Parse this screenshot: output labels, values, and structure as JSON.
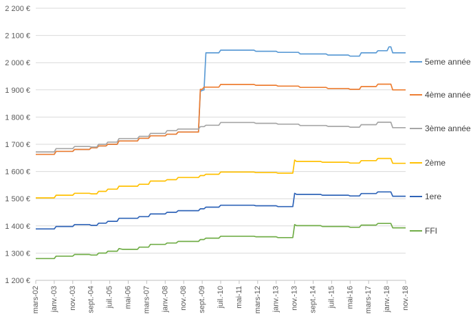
{
  "chart_data": {
    "type": "line",
    "title": "",
    "xlabel": "",
    "ylabel": "",
    "ylim": [
      1200,
      2200
    ],
    "y_tick_step": 100,
    "y_tick_labels": [
      "1 200 €",
      "1 300 €",
      "1 400 €",
      "1 500 €",
      "1 600 €",
      "1 700 €",
      "1 800 €",
      "1 900 €",
      "2 000 €",
      "2 100 €",
      "2 200 €"
    ],
    "x_tick_labels": [
      "mars-02",
      "janv.-03",
      "nov.-03",
      "sept.-04",
      "juil.-05",
      "mai-06",
      "mars-07",
      "janv.-08",
      "nov.-08",
      "sept.-09",
      "juil.-10",
      "mai-11",
      "mars-12",
      "janv.-13",
      "nov.-13",
      "sept.-14",
      "juil.-15",
      "mai-16",
      "mars-17",
      "janv.-18",
      "nov.-18"
    ],
    "grid": true,
    "legend_position": "right",
    "series": [
      {
        "name": "5eme année",
        "color": "#5B9BD5",
        "points": [
          [
            "mars-02",
            1663
          ],
          [
            "janv.-03",
            1663
          ],
          [
            "févr.-03",
            1674
          ],
          [
            "nov.-03",
            1674
          ],
          [
            "déc.-03",
            1681
          ],
          [
            "août-04",
            1681
          ],
          [
            "sept.-04",
            1687
          ],
          [
            "déc.-04",
            1687
          ],
          [
            "janv.-05",
            1694
          ],
          [
            "mai-05",
            1694
          ],
          [
            "juin-05",
            1700
          ],
          [
            "nov.-05",
            1700
          ],
          [
            "déc.-05",
            1712
          ],
          [
            "oct.-06",
            1712
          ],
          [
            "nov.-06",
            1722
          ],
          [
            "avr.-07",
            1722
          ],
          [
            "mai-07",
            1731
          ],
          [
            "janv.-08",
            1731
          ],
          [
            "févr.-08",
            1737
          ],
          [
            "juil.-08",
            1737
          ],
          [
            "août-08",
            1745
          ],
          [
            "juil.-09",
            1745
          ],
          [
            "août-09",
            1895
          ],
          [
            "sept.-09",
            1898
          ],
          [
            "oct.-09",
            1900
          ],
          [
            "nov.-09",
            2036
          ],
          [
            "juin-10",
            2036
          ],
          [
            "juil.-10",
            2046
          ],
          [
            "janv.-12",
            2046
          ],
          [
            "févr.-12",
            2042
          ],
          [
            "janv.-13",
            2042
          ],
          [
            "févr.-13",
            2038
          ],
          [
            "janv.-14",
            2038
          ],
          [
            "févr.-14",
            2032
          ],
          [
            "avr.-15",
            2032
          ],
          [
            "mai-15",
            2028
          ],
          [
            "avr.-16",
            2028
          ],
          [
            "mai-16",
            2024
          ],
          [
            "oct.-16",
            2024
          ],
          [
            "nov.-16",
            2036
          ],
          [
            "juil.-17",
            2036
          ],
          [
            "août-17",
            2044
          ],
          [
            "janv.-18",
            2044
          ],
          [
            "févr.-18",
            2058
          ],
          [
            "mars-18",
            2058
          ],
          [
            "avr.-18",
            2036
          ],
          [
            "nov.-18",
            2036
          ]
        ]
      },
      {
        "name": "4ème année",
        "color": "#ED7D31",
        "points": [
          [
            "mars-02",
            1663
          ],
          [
            "janv.-03",
            1663
          ],
          [
            "févr.-03",
            1674
          ],
          [
            "nov.-03",
            1674
          ],
          [
            "déc.-03",
            1681
          ],
          [
            "août-04",
            1681
          ],
          [
            "sept.-04",
            1687
          ],
          [
            "déc.-04",
            1687
          ],
          [
            "janv.-05",
            1694
          ],
          [
            "mai-05",
            1694
          ],
          [
            "juin-05",
            1700
          ],
          [
            "nov.-05",
            1700
          ],
          [
            "déc.-05",
            1712
          ],
          [
            "oct.-06",
            1712
          ],
          [
            "nov.-06",
            1722
          ],
          [
            "avr.-07",
            1722
          ],
          [
            "mai-07",
            1731
          ],
          [
            "janv.-08",
            1731
          ],
          [
            "févr.-08",
            1737
          ],
          [
            "juil.-08",
            1737
          ],
          [
            "août-08",
            1745
          ],
          [
            "juil.-09",
            1745
          ],
          [
            "août-09",
            1902
          ],
          [
            "sept.-09",
            1902
          ],
          [
            "oct.-09",
            1910
          ],
          [
            "juin-10",
            1910
          ],
          [
            "juil.-10",
            1920
          ],
          [
            "janv.-12",
            1920
          ],
          [
            "févr.-12",
            1917
          ],
          [
            "janv.-13",
            1917
          ],
          [
            "févr.-13",
            1914
          ],
          [
            "janv.-14",
            1914
          ],
          [
            "févr.-14",
            1909
          ],
          [
            "avr.-15",
            1909
          ],
          [
            "mai-15",
            1905
          ],
          [
            "avr.-16",
            1905
          ],
          [
            "mai-16",
            1902
          ],
          [
            "oct.-16",
            1902
          ],
          [
            "nov.-16",
            1912
          ],
          [
            "juil.-17",
            1912
          ],
          [
            "août-17",
            1921
          ],
          [
            "mars-18",
            1921
          ],
          [
            "avr.-18",
            1900
          ],
          [
            "nov.-18",
            1900
          ]
        ]
      },
      {
        "name": "3ème année",
        "color": "#A5A5A5",
        "points": [
          [
            "mars-02",
            1672
          ],
          [
            "janv.-03",
            1672
          ],
          [
            "févr.-03",
            1684
          ],
          [
            "nov.-03",
            1684
          ],
          [
            "déc.-03",
            1692
          ],
          [
            "août-04",
            1692
          ],
          [
            "sept.-04",
            1690
          ],
          [
            "déc.-04",
            1690
          ],
          [
            "janv.-05",
            1700
          ],
          [
            "mai-05",
            1700
          ],
          [
            "juin-05",
            1708
          ],
          [
            "nov.-05",
            1708
          ],
          [
            "déc.-05",
            1721
          ],
          [
            "oct.-06",
            1721
          ],
          [
            "nov.-06",
            1729
          ],
          [
            "avr.-07",
            1729
          ],
          [
            "mai-07",
            1740
          ],
          [
            "janv.-08",
            1740
          ],
          [
            "févr.-08",
            1750
          ],
          [
            "juil.-08",
            1750
          ],
          [
            "août-08",
            1756
          ],
          [
            "juil.-09",
            1756
          ],
          [
            "août-09",
            1765
          ],
          [
            "oct.-09",
            1765
          ],
          [
            "nov.-09",
            1770
          ],
          [
            "juin-10",
            1770
          ],
          [
            "juil.-10",
            1780
          ],
          [
            "janv.-12",
            1780
          ],
          [
            "févr.-12",
            1777
          ],
          [
            "janv.-13",
            1777
          ],
          [
            "févr.-13",
            1774
          ],
          [
            "janv.-14",
            1774
          ],
          [
            "févr.-14",
            1769
          ],
          [
            "avr.-15",
            1769
          ],
          [
            "mai-15",
            1766
          ],
          [
            "avr.-16",
            1766
          ],
          [
            "mai-16",
            1763
          ],
          [
            "oct.-16",
            1763
          ],
          [
            "nov.-16",
            1772
          ],
          [
            "juil.-17",
            1772
          ],
          [
            "août-17",
            1781
          ],
          [
            "mars-18",
            1781
          ],
          [
            "avr.-18",
            1761
          ],
          [
            "nov.-18",
            1761
          ]
        ]
      },
      {
        "name": "2ème",
        "color": "#FFC000",
        "points": [
          [
            "mars-02",
            1503
          ],
          [
            "janv.-03",
            1503
          ],
          [
            "févr.-03",
            1513
          ],
          [
            "nov.-03",
            1513
          ],
          [
            "déc.-03",
            1520
          ],
          [
            "août-04",
            1520
          ],
          [
            "sept.-04",
            1518
          ],
          [
            "déc.-04",
            1518
          ],
          [
            "janv.-05",
            1527
          ],
          [
            "mai-05",
            1527
          ],
          [
            "juin-05",
            1535
          ],
          [
            "nov.-05",
            1535
          ],
          [
            "déc.-05",
            1546
          ],
          [
            "oct.-06",
            1546
          ],
          [
            "nov.-06",
            1553
          ],
          [
            "avr.-07",
            1553
          ],
          [
            "mai-07",
            1565
          ],
          [
            "janv.-08",
            1565
          ],
          [
            "févr.-08",
            1570
          ],
          [
            "juil.-08",
            1570
          ],
          [
            "août-08",
            1578
          ],
          [
            "juil.-09",
            1578
          ],
          [
            "août-09",
            1585
          ],
          [
            "oct.-09",
            1585
          ],
          [
            "nov.-09",
            1590
          ],
          [
            "juin-10",
            1590
          ],
          [
            "juil.-10",
            1598
          ],
          [
            "janv.-12",
            1598
          ],
          [
            "févr.-12",
            1596
          ],
          [
            "janv.-13",
            1596
          ],
          [
            "févr.-13",
            1594
          ],
          [
            "oct.-13",
            1594
          ],
          [
            "nov.-13",
            1642
          ],
          [
            "déc.-13",
            1637
          ],
          [
            "janv.-15",
            1637
          ],
          [
            "févr.-15",
            1634
          ],
          [
            "avr.-16",
            1634
          ],
          [
            "mai-16",
            1631
          ],
          [
            "oct.-16",
            1631
          ],
          [
            "nov.-16",
            1640
          ],
          [
            "juil.-17",
            1640
          ],
          [
            "août-17",
            1648
          ],
          [
            "mars-18",
            1648
          ],
          [
            "avr.-18",
            1630
          ],
          [
            "nov.-18",
            1630
          ]
        ]
      },
      {
        "name": "1ere",
        "color": "#2E63B7",
        "points": [
          [
            "mars-02",
            1389
          ],
          [
            "janv.-03",
            1389
          ],
          [
            "févr.-03",
            1398
          ],
          [
            "nov.-03",
            1398
          ],
          [
            "déc.-03",
            1405
          ],
          [
            "août-04",
            1405
          ],
          [
            "sept.-04",
            1402
          ],
          [
            "déc.-04",
            1402
          ],
          [
            "janv.-05",
            1410
          ],
          [
            "mai-05",
            1410
          ],
          [
            "juin-05",
            1417
          ],
          [
            "nov.-05",
            1417
          ],
          [
            "déc.-05",
            1428
          ],
          [
            "oct.-06",
            1428
          ],
          [
            "nov.-06",
            1434
          ],
          [
            "avr.-07",
            1434
          ],
          [
            "mai-07",
            1444
          ],
          [
            "janv.-08",
            1444
          ],
          [
            "févr.-08",
            1450
          ],
          [
            "juil.-08",
            1450
          ],
          [
            "août-08",
            1456
          ],
          [
            "juil.-09",
            1456
          ],
          [
            "août-09",
            1463
          ],
          [
            "oct.-09",
            1463
          ],
          [
            "nov.-09",
            1469
          ],
          [
            "juin-10",
            1469
          ],
          [
            "juil.-10",
            1476
          ],
          [
            "janv.-12",
            1476
          ],
          [
            "févr.-12",
            1474
          ],
          [
            "janv.-13",
            1474
          ],
          [
            "févr.-13",
            1471
          ],
          [
            "oct.-13",
            1471
          ],
          [
            "nov.-13",
            1520
          ],
          [
            "déc.-13",
            1516
          ],
          [
            "janv.-15",
            1516
          ],
          [
            "févr.-15",
            1513
          ],
          [
            "avr.-16",
            1513
          ],
          [
            "mai-16",
            1510
          ],
          [
            "oct.-16",
            1510
          ],
          [
            "nov.-16",
            1519
          ],
          [
            "juil.-17",
            1519
          ],
          [
            "août-17",
            1525
          ],
          [
            "mars-18",
            1525
          ],
          [
            "avr.-18",
            1509
          ],
          [
            "nov.-18",
            1509
          ]
        ]
      },
      {
        "name": "FFI",
        "color": "#70AD47",
        "points": [
          [
            "mars-02",
            1280
          ],
          [
            "janv.-03",
            1280
          ],
          [
            "févr.-03",
            1289
          ],
          [
            "nov.-03",
            1289
          ],
          [
            "déc.-03",
            1295
          ],
          [
            "août-04",
            1295
          ],
          [
            "sept.-04",
            1293
          ],
          [
            "déc.-04",
            1293
          ],
          [
            "janv.-05",
            1300
          ],
          [
            "mai-05",
            1300
          ],
          [
            "juin-05",
            1307
          ],
          [
            "nov.-05",
            1307
          ],
          [
            "déc.-05",
            1317
          ],
          [
            "févr.-06",
            1314
          ],
          [
            "oct.-06",
            1314
          ],
          [
            "nov.-06",
            1322
          ],
          [
            "avr.-07",
            1322
          ],
          [
            "mai-07",
            1332
          ],
          [
            "janv.-08",
            1332
          ],
          [
            "févr.-08",
            1337
          ],
          [
            "juil.-08",
            1337
          ],
          [
            "août-08",
            1343
          ],
          [
            "juil.-09",
            1343
          ],
          [
            "août-09",
            1350
          ],
          [
            "oct.-09",
            1350
          ],
          [
            "nov.-09",
            1355
          ],
          [
            "juin-10",
            1355
          ],
          [
            "juil.-10",
            1362
          ],
          [
            "janv.-12",
            1362
          ],
          [
            "févr.-12",
            1360
          ],
          [
            "janv.-13",
            1360
          ],
          [
            "févr.-13",
            1357
          ],
          [
            "oct.-13",
            1357
          ],
          [
            "nov.-13",
            1405
          ],
          [
            "déc.-13",
            1401
          ],
          [
            "janv.-15",
            1401
          ],
          [
            "févr.-15",
            1398
          ],
          [
            "avr.-16",
            1398
          ],
          [
            "mai-16",
            1395
          ],
          [
            "oct.-16",
            1395
          ],
          [
            "nov.-16",
            1403
          ],
          [
            "juil.-17",
            1403
          ],
          [
            "août-17",
            1409
          ],
          [
            "mars-18",
            1409
          ],
          [
            "avr.-18",
            1393
          ],
          [
            "nov.-18",
            1393
          ]
        ]
      }
    ]
  }
}
